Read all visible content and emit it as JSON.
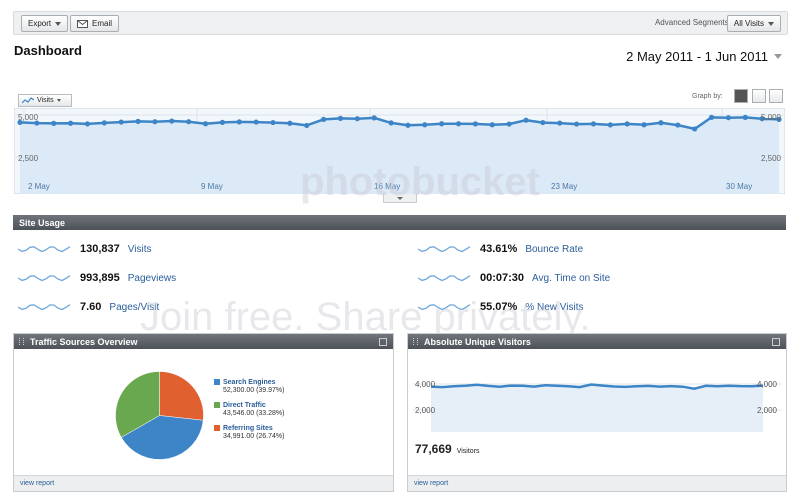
{
  "toolbar": {
    "export_label": "Export",
    "email_label": "Email",
    "segments_label": "Advanced Segments:",
    "segments_value": "All Visits"
  },
  "page": {
    "title": "Dashboard",
    "date_range": "2 May 2011 - 1 Jun 2011"
  },
  "main_chart": {
    "metric_label": "Visits",
    "graph_by_label": "Graph by:",
    "y_top_label": "5,000",
    "y_mid_label": "2,500",
    "x_labels": [
      "2 May",
      "9 May",
      "16 May",
      "23 May",
      "30 May"
    ],
    "ylim": [
      0,
      5000
    ],
    "values": [
      4560,
      4520,
      4500,
      4510,
      4470,
      4530,
      4580,
      4620,
      4600,
      4640,
      4600,
      4480,
      4560,
      4590,
      4580,
      4550,
      4510,
      4380,
      4740,
      4800,
      4780,
      4830,
      4530,
      4390,
      4420,
      4480,
      4480,
      4470,
      4420,
      4460,
      4690,
      4550,
      4520,
      4460,
      4470,
      4410,
      4470,
      4420,
      4540,
      4400,
      4170,
      4860,
      4840,
      4860,
      4780,
      4740
    ]
  },
  "site_usage": {
    "header": "Site Usage",
    "left": [
      {
        "value": "130,837",
        "label": "Visits"
      },
      {
        "value": "993,895",
        "label": "Pageviews"
      },
      {
        "value": "7.60",
        "label": "Pages/Visit"
      }
    ],
    "right": [
      {
        "value": "43.61%",
        "label": "Bounce Rate"
      },
      {
        "value": "00:07:30",
        "label": "Avg. Time on Site"
      },
      {
        "value": "55.07%",
        "label": "% New Visits"
      }
    ]
  },
  "traffic_sources": {
    "header": "Traffic Sources Overview",
    "footer_link": "view report",
    "chart_data": {
      "type": "pie",
      "slices": [
        {
          "name": "Search Engines",
          "value": 52300,
          "value_label": "52,300.00 (39.97%)",
          "color": "#3d85c6"
        },
        {
          "name": "Direct Traffic",
          "value": 43546,
          "value_label": "43,546.00 (33.28%)",
          "color": "#6aa84f"
        },
        {
          "name": "Referring Sites",
          "value": 34991,
          "value_label": "34,991.00 (26.74%)",
          "color": "#e06030"
        }
      ]
    }
  },
  "unique_visitors": {
    "header": "Absolute Unique Visitors",
    "y_top_label": "4,000",
    "y_mid_label": "2,000",
    "total_value": "77,669",
    "total_label": "Visitors",
    "footer_link": "view report",
    "ylim": [
      0,
      4000
    ],
    "values": [
      3800,
      3760,
      3820,
      3870,
      3940,
      3850,
      3790,
      3880,
      3860,
      3800,
      3900,
      3870,
      3830,
      3760,
      3960,
      3880,
      3810,
      3780,
      3830,
      3850,
      3800,
      3840,
      3790,
      3640,
      3860,
      3830,
      3870,
      3840,
      3830,
      3880
    ]
  },
  "watermark": {
    "line1": "photobucket",
    "line2": "Join free. Share privately."
  }
}
